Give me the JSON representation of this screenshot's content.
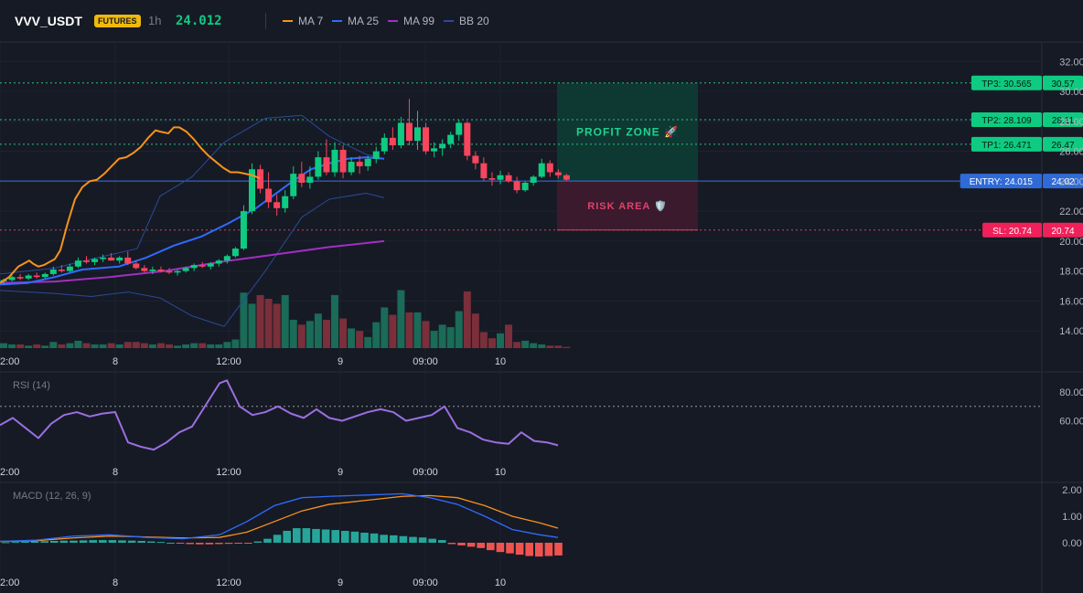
{
  "header": {
    "symbol": "VVV_USDT",
    "badge": "FUTURES",
    "timeframe": "1h",
    "price": "24.012",
    "indicators": [
      {
        "label": "MA 7",
        "color": "#f7931a"
      },
      {
        "label": "MA 25",
        "color": "#2f6bff"
      },
      {
        "label": "MA 99",
        "color": "#a32fc4"
      },
      {
        "label": "BB 20",
        "color": "#2a4a9a"
      }
    ]
  },
  "colors": {
    "up": "#0ecb81",
    "down": "#f6465d",
    "up_vol": "#1a6b58",
    "down_vol": "#7a2f3a",
    "grid": "#1f2330",
    "profit_fill": "#0e3b33",
    "risk_fill": "#3d1a2e",
    "tp_line": "#26c281",
    "sl_line": "#d8415f",
    "entry_line": "#3770e6",
    "rsi_line": "#9b6fe0",
    "macd_line": "#2f6bff",
    "signal_line": "#f7931a",
    "hist_pos": "#26a69a",
    "hist_neg": "#ef5350"
  },
  "x_axis": {
    "labels": [
      "2:00",
      "8",
      "12:00",
      "9",
      "09:00",
      "10"
    ]
  },
  "main_axis": {
    "ticks": [
      "32.00",
      "30.00",
      "28.00",
      "26.00",
      "24.00",
      "22.00",
      "20.00",
      "18.00",
      "16.00",
      "14.00"
    ],
    "ylim": [
      12.85,
      33.3
    ]
  },
  "rsi_panel": {
    "title": "RSI (14)",
    "ticks": [
      "80.00",
      "60.00"
    ],
    "overbought": 70
  },
  "macd_panel": {
    "title": "MACD (12, 26, 9)",
    "ticks": [
      "2.00",
      "1.00",
      "0.00"
    ]
  },
  "zones": {
    "profit_label": "PROFIT ZONE 🚀",
    "risk_label": "RISK AREA 🛡️"
  },
  "levels": [
    {
      "id": "tp3",
      "tag": "TP3: 30.565",
      "axis": "30.57",
      "value": 30.565,
      "kind": "tp"
    },
    {
      "id": "tp2",
      "tag": "TP2: 28.109",
      "axis": "28.11",
      "value": 28.109,
      "kind": "tp"
    },
    {
      "id": "tp1",
      "tag": "TP1: 26.471",
      "axis": "26.47",
      "value": 26.471,
      "kind": "tp"
    },
    {
      "id": "entry",
      "tag": "ENTRY: 24.015",
      "axis": "24.02",
      "value": 24.015,
      "kind": "entry"
    },
    {
      "id": "sl",
      "tag": "SL: 20.74",
      "axis": "20.74",
      "value": 20.74,
      "kind": "sl"
    }
  ],
  "chart_data": {
    "type": "candlestick",
    "candles": [
      [
        17.3,
        17.5,
        17.1,
        17.4
      ],
      [
        17.4,
        17.7,
        17.3,
        17.6
      ],
      [
        17.6,
        17.8,
        17.4,
        17.5
      ],
      [
        17.5,
        17.8,
        17.4,
        17.7
      ],
      [
        17.7,
        17.9,
        17.5,
        17.6
      ],
      [
        17.6,
        17.9,
        17.5,
        17.8
      ],
      [
        17.8,
        18.3,
        17.7,
        18.1
      ],
      [
        18.1,
        18.4,
        17.9,
        18.0
      ],
      [
        18.0,
        18.5,
        17.9,
        18.3
      ],
      [
        18.3,
        18.9,
        18.2,
        18.7
      ],
      [
        18.7,
        19.0,
        18.5,
        18.6
      ],
      [
        18.6,
        18.9,
        18.4,
        18.8
      ],
      [
        18.8,
        19.1,
        18.6,
        18.9
      ],
      [
        18.9,
        19.2,
        18.7,
        18.7
      ],
      [
        18.7,
        19.0,
        18.5,
        18.9
      ],
      [
        18.9,
        19.3,
        18.4,
        18.5
      ],
      [
        18.5,
        18.7,
        18.1,
        18.2
      ],
      [
        18.2,
        18.4,
        17.9,
        18.0
      ],
      [
        18.0,
        18.3,
        17.8,
        18.1
      ],
      [
        18.1,
        18.3,
        17.9,
        18.0
      ],
      [
        18.0,
        18.2,
        17.8,
        17.9
      ],
      [
        17.9,
        18.1,
        17.7,
        18.0
      ],
      [
        18.0,
        18.3,
        17.9,
        18.2
      ],
      [
        18.2,
        18.5,
        18.0,
        18.4
      ],
      [
        18.4,
        18.6,
        18.2,
        18.3
      ],
      [
        18.3,
        18.6,
        18.1,
        18.5
      ],
      [
        18.5,
        18.8,
        18.3,
        18.7
      ],
      [
        18.7,
        19.1,
        18.5,
        19.0
      ],
      [
        19.0,
        19.6,
        18.9,
        19.5
      ],
      [
        19.5,
        22.4,
        19.4,
        22.0
      ],
      [
        22.0,
        25.2,
        21.8,
        24.8
      ],
      [
        24.8,
        25.1,
        23.2,
        23.5
      ],
      [
        23.5,
        24.6,
        22.2,
        22.6
      ],
      [
        22.6,
        23.1,
        21.7,
        22.2
      ],
      [
        22.2,
        23.4,
        21.9,
        23.0
      ],
      [
        23.0,
        25.0,
        22.8,
        24.5
      ],
      [
        24.5,
        25.3,
        23.6,
        23.9
      ],
      [
        23.9,
        25.0,
        23.5,
        24.3
      ],
      [
        24.3,
        26.0,
        24.1,
        25.6
      ],
      [
        25.6,
        26.8,
        24.4,
        24.6
      ],
      [
        24.6,
        26.6,
        24.3,
        26.1
      ],
      [
        26.1,
        26.4,
        24.2,
        24.6
      ],
      [
        24.6,
        25.6,
        24.4,
        25.3
      ],
      [
        25.3,
        25.7,
        24.5,
        25.0
      ],
      [
        25.0,
        25.7,
        24.7,
        25.5
      ],
      [
        25.5,
        26.3,
        25.2,
        26.0
      ],
      [
        26.0,
        27.2,
        25.8,
        26.9
      ],
      [
        26.9,
        27.6,
        26.1,
        26.4
      ],
      [
        26.4,
        28.3,
        26.2,
        27.9
      ],
      [
        27.9,
        29.5,
        26.4,
        26.7
      ],
      [
        26.7,
        28.7,
        26.1,
        27.6
      ],
      [
        27.6,
        27.9,
        25.8,
        26.0
      ],
      [
        26.0,
        26.6,
        25.6,
        26.2
      ],
      [
        26.2,
        26.8,
        25.7,
        26.5
      ],
      [
        26.5,
        27.3,
        26.2,
        27.1
      ],
      [
        27.1,
        28.1,
        26.7,
        27.9
      ],
      [
        27.9,
        28.0,
        25.4,
        25.7
      ],
      [
        25.7,
        26.0,
        24.8,
        25.2
      ],
      [
        25.2,
        25.6,
        24.0,
        24.2
      ],
      [
        24.2,
        24.6,
        23.7,
        24.1
      ],
      [
        24.1,
        24.7,
        23.8,
        24.4
      ],
      [
        24.4,
        24.6,
        23.9,
        24.0
      ],
      [
        24.0,
        24.3,
        23.2,
        23.4
      ],
      [
        23.4,
        24.0,
        23.3,
        23.9
      ],
      [
        23.9,
        24.4,
        23.7,
        24.3
      ],
      [
        24.3,
        25.5,
        24.2,
        25.2
      ],
      [
        25.2,
        25.4,
        24.3,
        24.6
      ],
      [
        24.6,
        24.8,
        24.2,
        24.4
      ],
      [
        24.4,
        24.5,
        24.0,
        24.1
      ]
    ],
    "volume": [
      0.4,
      0.3,
      0.3,
      0.2,
      0.3,
      0.2,
      0.5,
      0.3,
      0.4,
      0.6,
      0.4,
      0.3,
      0.3,
      0.4,
      0.3,
      0.5,
      0.5,
      0.4,
      0.3,
      0.4,
      0.3,
      0.2,
      0.3,
      0.4,
      0.4,
      0.3,
      0.3,
      0.5,
      0.7,
      4.5,
      3.6,
      4.3,
      4.0,
      3.6,
      4.3,
      2.3,
      1.9,
      2.2,
      2.8,
      2.3,
      4.3,
      2.4,
      1.6,
      1.4,
      0.9,
      2.1,
      3.3,
      2.7,
      4.7,
      2.9,
      2.9,
      2.2,
      1.4,
      1.9,
      1.7,
      3.0,
      4.6,
      2.8,
      1.3,
      0.8,
      1.2,
      1.9,
      0.5,
      0.6,
      0.4,
      0.3,
      0.2,
      0.2,
      0.1
    ],
    "ma7": [
      [
        0,
        17.2
      ],
      [
        10,
        17.6
      ],
      [
        20,
        18.3
      ],
      [
        26,
        18.5
      ],
      [
        32,
        18.7
      ],
      [
        36,
        18.5
      ],
      [
        42,
        18.3
      ],
      [
        48,
        18.4
      ],
      [
        54,
        18.6
      ],
      [
        60,
        18.8
      ],
      [
        66,
        19.4
      ],
      [
        74,
        21.2
      ],
      [
        82,
        22.8
      ],
      [
        90,
        23.6
      ],
      [
        98,
        24.0
      ],
      [
        106,
        24.1
      ],
      [
        114,
        24.5
      ],
      [
        122,
        25.0
      ],
      [
        130,
        25.5
      ],
      [
        138,
        25.6
      ],
      [
        146,
        25.9
      ],
      [
        154,
        26.3
      ],
      [
        162,
        26.9
      ],
      [
        170,
        27.4
      ],
      [
        176,
        27.3
      ],
      [
        184,
        27.2
      ],
      [
        190,
        27.6
      ],
      [
        196,
        27.6
      ],
      [
        204,
        27.3
      ],
      [
        212,
        26.8
      ],
      [
        220,
        26.2
      ],
      [
        228,
        25.7
      ],
      [
        236,
        25.3
      ],
      [
        244,
        24.9
      ],
      [
        252,
        24.6
      ],
      [
        260,
        24.6
      ],
      [
        268,
        24.5
      ],
      [
        276,
        24.4
      ],
      [
        284,
        24.2
      ]
    ],
    "ma25": [
      [
        0,
        17.1
      ],
      [
        30,
        17.2
      ],
      [
        60,
        17.6
      ],
      [
        90,
        18.1
      ],
      [
        110,
        18.2
      ],
      [
        130,
        18.3
      ],
      [
        160,
        18.9
      ],
      [
        190,
        19.7
      ],
      [
        220,
        20.3
      ],
      [
        250,
        21.2
      ],
      [
        280,
        22.2
      ],
      [
        300,
        23.1
      ],
      [
        320,
        24.0
      ],
      [
        340,
        24.8
      ],
      [
        360,
        25.2
      ],
      [
        380,
        25.5
      ],
      [
        400,
        25.6
      ],
      [
        420,
        25.5
      ]
    ],
    "ma99": [
      [
        0,
        17.2
      ],
      [
        60,
        17.3
      ],
      [
        120,
        17.6
      ],
      [
        180,
        18.0
      ],
      [
        240,
        18.6
      ],
      [
        300,
        19.1
      ],
      [
        360,
        19.6
      ],
      [
        420,
        20.0
      ]
    ],
    "bb_upper": [
      [
        0,
        17.8
      ],
      [
        60,
        18.2
      ],
      [
        100,
        18.8
      ],
      [
        150,
        19.5
      ],
      [
        175,
        23.0
      ],
      [
        210,
        24.3
      ],
      [
        245,
        26.6
      ],
      [
        290,
        28.2
      ],
      [
        330,
        28.4
      ],
      [
        360,
        27.0
      ],
      [
        400,
        25.8
      ],
      [
        420,
        25.5
      ]
    ],
    "bb_lower": [
      [
        0,
        16.7
      ],
      [
        60,
        16.5
      ],
      [
        100,
        16.3
      ],
      [
        140,
        16.6
      ],
      [
        175,
        16.2
      ],
      [
        210,
        15.0
      ],
      [
        245,
        14.3
      ],
      [
        290,
        18.0
      ],
      [
        330,
        21.6
      ],
      [
        360,
        22.8
      ],
      [
        400,
        23.2
      ],
      [
        420,
        22.9
      ]
    ],
    "rsi": [
      [
        0,
        57
      ],
      [
        14,
        62
      ],
      [
        28,
        55
      ],
      [
        42,
        48
      ],
      [
        56,
        58
      ],
      [
        70,
        64
      ],
      [
        84,
        66
      ],
      [
        98,
        63
      ],
      [
        112,
        65
      ],
      [
        126,
        66
      ],
      [
        140,
        45
      ],
      [
        154,
        42
      ],
      [
        168,
        40
      ],
      [
        182,
        45
      ],
      [
        196,
        52
      ],
      [
        210,
        56
      ],
      [
        224,
        70
      ],
      [
        232,
        78
      ],
      [
        240,
        86
      ],
      [
        248,
        88
      ],
      [
        262,
        70
      ],
      [
        276,
        64
      ],
      [
        290,
        66
      ],
      [
        304,
        70
      ],
      [
        318,
        65
      ],
      [
        332,
        62
      ],
      [
        346,
        68
      ],
      [
        360,
        62
      ],
      [
        374,
        60
      ],
      [
        388,
        63
      ],
      [
        402,
        66
      ],
      [
        416,
        68
      ],
      [
        430,
        66
      ],
      [
        444,
        60
      ],
      [
        458,
        62
      ],
      [
        472,
        64
      ],
      [
        486,
        70
      ],
      [
        500,
        55
      ],
      [
        514,
        52
      ],
      [
        528,
        47
      ],
      [
        542,
        45
      ],
      [
        556,
        44
      ],
      [
        570,
        52
      ],
      [
        584,
        46
      ],
      [
        598,
        45
      ],
      [
        610,
        43
      ]
    ],
    "macd": [
      [
        0,
        0.05
      ],
      [
        40,
        0.1
      ],
      [
        80,
        0.25
      ],
      [
        120,
        0.3
      ],
      [
        160,
        0.2
      ],
      [
        200,
        0.15
      ],
      [
        240,
        0.3
      ],
      [
        270,
        0.8
      ],
      [
        300,
        1.4
      ],
      [
        330,
        1.7
      ],
      [
        360,
        1.75
      ],
      [
        400,
        1.8
      ],
      [
        440,
        1.85
      ],
      [
        470,
        1.7
      ],
      [
        500,
        1.45
      ],
      [
        530,
        1.0
      ],
      [
        560,
        0.5
      ],
      [
        590,
        0.3
      ],
      [
        610,
        0.2
      ]
    ],
    "signal": [
      [
        0,
        0.05
      ],
      [
        40,
        0.08
      ],
      [
        80,
        0.18
      ],
      [
        120,
        0.25
      ],
      [
        160,
        0.22
      ],
      [
        200,
        0.18
      ],
      [
        240,
        0.2
      ],
      [
        270,
        0.4
      ],
      [
        300,
        0.8
      ],
      [
        330,
        1.2
      ],
      [
        360,
        1.45
      ],
      [
        400,
        1.6
      ],
      [
        440,
        1.75
      ],
      [
        470,
        1.78
      ],
      [
        500,
        1.7
      ],
      [
        530,
        1.4
      ],
      [
        560,
        1.0
      ],
      [
        590,
        0.75
      ],
      [
        610,
        0.55
      ]
    ],
    "histogram": [
      0.02,
      0.03,
      0.04,
      0.05,
      0.06,
      0.07,
      0.08,
      0.08,
      0.09,
      0.1,
      0.1,
      0.1,
      0.09,
      0.08,
      0.07,
      0.05,
      0.03,
      0.0,
      -0.03,
      -0.05,
      -0.06,
      -0.06,
      -0.05,
      -0.04,
      -0.03,
      -0.02,
      0.05,
      0.15,
      0.3,
      0.45,
      0.55,
      0.55,
      0.52,
      0.5,
      0.48,
      0.45,
      0.42,
      0.38,
      0.35,
      0.3,
      0.28,
      0.25,
      0.22,
      0.2,
      0.15,
      0.1,
      -0.05,
      -0.1,
      -0.15,
      -0.2,
      -0.28,
      -0.35,
      -0.4,
      -0.45,
      -0.5,
      -0.52,
      -0.5,
      -0.48
    ]
  }
}
